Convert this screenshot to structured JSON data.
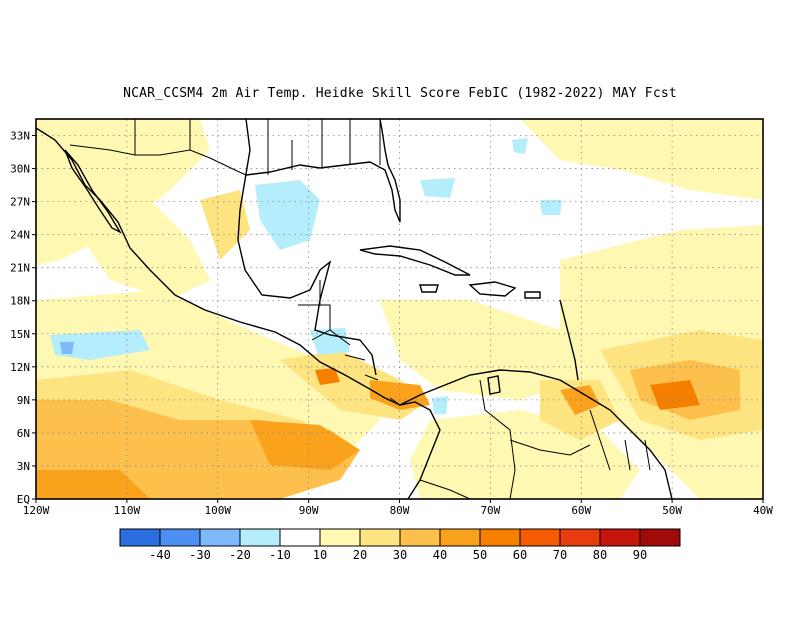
{
  "title": "NCAR_CCSM4  2m Air Temp. Heidke Skill Score FebIC (1982-2022) MAY Fcst",
  "map": {
    "lon_labels": [
      "120W",
      "110W",
      "100W",
      "90W",
      "80W",
      "70W",
      "60W",
      "50W",
      "40W"
    ],
    "lat_labels": [
      "EQ",
      "3N",
      "6N",
      "9N",
      "12N",
      "15N",
      "18N",
      "21N",
      "24N",
      "27N",
      "30N",
      "33N"
    ],
    "lon_range": [
      -120,
      -40
    ],
    "lat_range": [
      0,
      34.5
    ],
    "grid": "dotted"
  },
  "colorbar": {
    "colors": [
      "#2a6ee0",
      "#4c8ff0",
      "#7db9fb",
      "#b4edfb",
      "#ffffff",
      "#fef8b3",
      "#fde480",
      "#fdc04c",
      "#fba21c",
      "#f77f00",
      "#f55a04",
      "#e83b10",
      "#c6150a",
      "#a00a0a"
    ],
    "labels": [
      "-40",
      "-30",
      "-20",
      "-10",
      "10",
      "20",
      "30",
      "40",
      "50",
      "60",
      "70",
      "80",
      "90"
    ]
  }
}
